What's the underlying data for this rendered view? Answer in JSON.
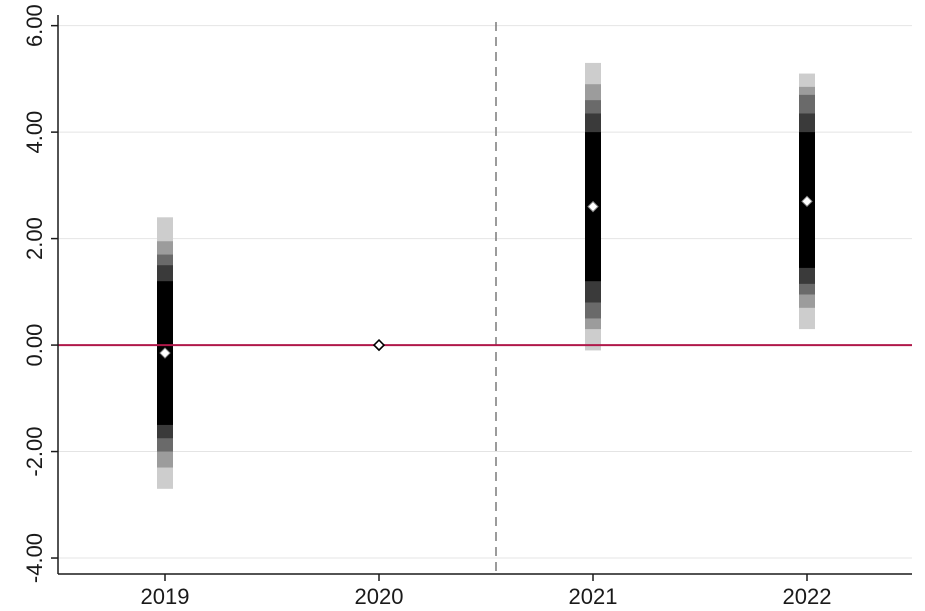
{
  "chart_data": {
    "type": "scatter",
    "x_tick_labels": [
      "2019",
      "2020",
      "2021",
      "2022"
    ],
    "y_tick_labels": [
      "-4.00",
      "-2.00",
      "0.00",
      "2.00",
      "4.00",
      "6.00"
    ],
    "y_ticks": [
      -4,
      -2,
      0,
      2,
      4,
      6
    ],
    "ylim": [
      -4.3,
      6.2
    ],
    "grid": true,
    "reference_line": {
      "y": 0,
      "color": "#b0184a"
    },
    "treatment_break": {
      "between": [
        "2020",
        "2021"
      ],
      "style": "dashed"
    },
    "points": [
      {
        "x": "2019",
        "estimate": -0.15,
        "ci_levels": [
          {
            "low": -1.5,
            "high": 1.2
          },
          {
            "low": -1.75,
            "high": 1.5
          },
          {
            "low": -2.0,
            "high": 1.7
          },
          {
            "low": -2.3,
            "high": 1.95
          },
          {
            "low": -2.7,
            "high": 2.4
          }
        ]
      },
      {
        "x": "2020",
        "estimate": 0.0,
        "ci_levels": []
      },
      {
        "x": "2021",
        "estimate": 2.6,
        "ci_levels": [
          {
            "low": 1.2,
            "high": 4.0
          },
          {
            "low": 0.8,
            "high": 4.35
          },
          {
            "low": 0.5,
            "high": 4.6
          },
          {
            "low": 0.3,
            "high": 4.9
          },
          {
            "low": -0.1,
            "high": 5.3
          }
        ]
      },
      {
        "x": "2022",
        "estimate": 2.7,
        "ci_levels": [
          {
            "low": 1.45,
            "high": 4.0
          },
          {
            "low": 1.15,
            "high": 4.35
          },
          {
            "low": 0.95,
            "high": 4.7
          },
          {
            "low": 0.7,
            "high": 4.85
          },
          {
            "low": 0.3,
            "high": 5.1
          }
        ]
      }
    ]
  },
  "colors": {
    "ci_shades": [
      "#000000",
      "#3a3a3a",
      "#6a6a6a",
      "#9c9c9c",
      "#cdcdcd"
    ],
    "reference": "#b0184a",
    "dashed": "#7a7a7a",
    "marker_fill": "#ffffff"
  }
}
